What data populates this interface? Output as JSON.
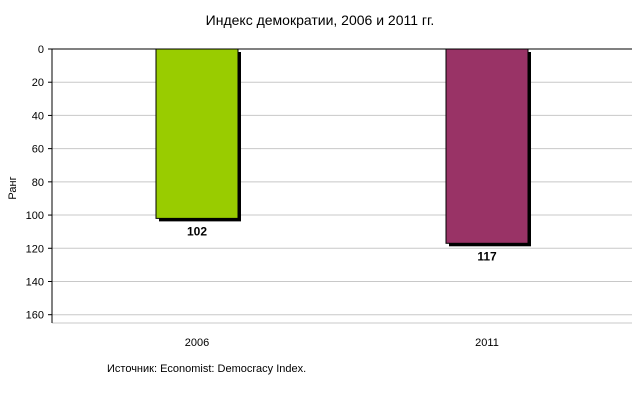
{
  "chart_data": {
    "type": "bar",
    "title": "Индекс демократии, 2006 и 2011 гг.",
    "categories": [
      "2006",
      "2011"
    ],
    "values": [
      102,
      117
    ],
    "data_labels": [
      "102",
      "117"
    ],
    "colors": [
      "#99CC00",
      "#993366"
    ],
    "ylabel": "Ранг",
    "xlabel": "",
    "ylim": [
      0,
      165
    ],
    "yticks": [
      0,
      20,
      40,
      60,
      80,
      100,
      120,
      140,
      160
    ],
    "y_inverted": true,
    "grid": true,
    "legend": "none"
  },
  "source": "Источник: Economist: Democracy Index."
}
